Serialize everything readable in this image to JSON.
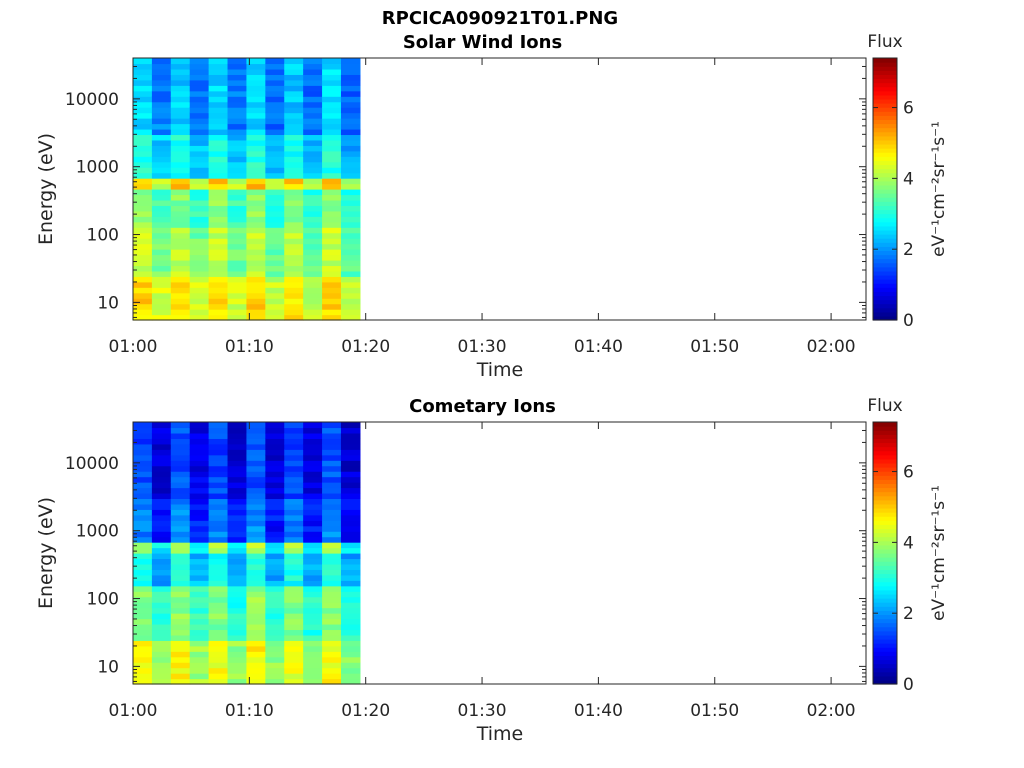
{
  "figure_title": "RPCICA090921T01.PNG",
  "colormap": "jet",
  "chart_data": [
    {
      "type": "heatmap",
      "title": "Solar Wind Ions",
      "xlabel": "Time",
      "ylabel": "Energy (eV)",
      "x_ticks": [
        "01:00",
        "01:10",
        "01:20",
        "01:30",
        "01:40",
        "01:50",
        "02:00"
      ],
      "x_range": [
        "01:00",
        "02:03"
      ],
      "data_extent_time": [
        "01:00",
        "01:19.5"
      ],
      "y_scale": "log",
      "y_ticks": [
        10,
        100,
        1000,
        10000
      ],
      "y_range": [
        5.5,
        40000
      ],
      "colorbar": {
        "title": "Flux",
        "label": "eV⁻¹cm⁻²sr⁻¹s⁻¹",
        "ticks": [
          0,
          2,
          4,
          6
        ],
        "range": [
          0,
          7.4
        ]
      },
      "time_columns": 12,
      "energy_rows": 48,
      "band_flux": [
        {
          "energy_range": [
            5.5,
            25
          ],
          "flux": [
            4.6,
            4.4
          ]
        },
        {
          "energy_range": [
            25,
            120
          ],
          "flux": [
            3.9,
            3.7
          ]
        },
        {
          "energy_range": [
            120,
            450
          ],
          "flux": [
            3.5,
            3.3
          ]
        },
        {
          "energy_range": [
            450,
            700
          ],
          "flux": [
            4.8,
            4.3
          ]
        },
        {
          "energy_range": [
            700,
            3000
          ],
          "flux": [
            2.7,
            2.5
          ]
        },
        {
          "energy_range": [
            3000,
            40000
          ],
          "flux": [
            2.2,
            1.9
          ]
        }
      ]
    },
    {
      "type": "heatmap",
      "title": "Cometary Ions",
      "xlabel": "Time",
      "ylabel": "Energy (eV)",
      "x_ticks": [
        "01:00",
        "01:10",
        "01:20",
        "01:30",
        "01:40",
        "01:50",
        "02:00"
      ],
      "x_range": [
        "01:00",
        "02:03"
      ],
      "data_extent_time": [
        "01:00",
        "01:19.5"
      ],
      "y_scale": "log",
      "y_ticks": [
        10,
        100,
        1000,
        10000
      ],
      "y_range": [
        5.5,
        40000
      ],
      "colorbar": {
        "title": "Flux",
        "label": "eV⁻¹cm⁻²sr⁻¹s⁻¹",
        "ticks": [
          0,
          2,
          4,
          6
        ],
        "range": [
          0,
          7.4
        ]
      },
      "time_columns": 12,
      "energy_rows": 48,
      "band_flux": [
        {
          "energy_range": [
            5.5,
            25
          ],
          "flux": [
            4.3,
            4.1
          ]
        },
        {
          "energy_range": [
            25,
            160
          ],
          "flux": [
            3.5,
            3.3
          ]
        },
        {
          "energy_range": [
            160,
            450
          ],
          "flux": [
            2.7,
            2.4
          ]
        },
        {
          "energy_range": [
            450,
            700
          ],
          "flux": [
            3.8,
            3.0
          ]
        },
        {
          "energy_range": [
            700,
            3000
          ],
          "flux": [
            1.6,
            1.3
          ]
        },
        {
          "energy_range": [
            3000,
            40000
          ],
          "flux": [
            1.2,
            0.9
          ]
        }
      ]
    }
  ]
}
